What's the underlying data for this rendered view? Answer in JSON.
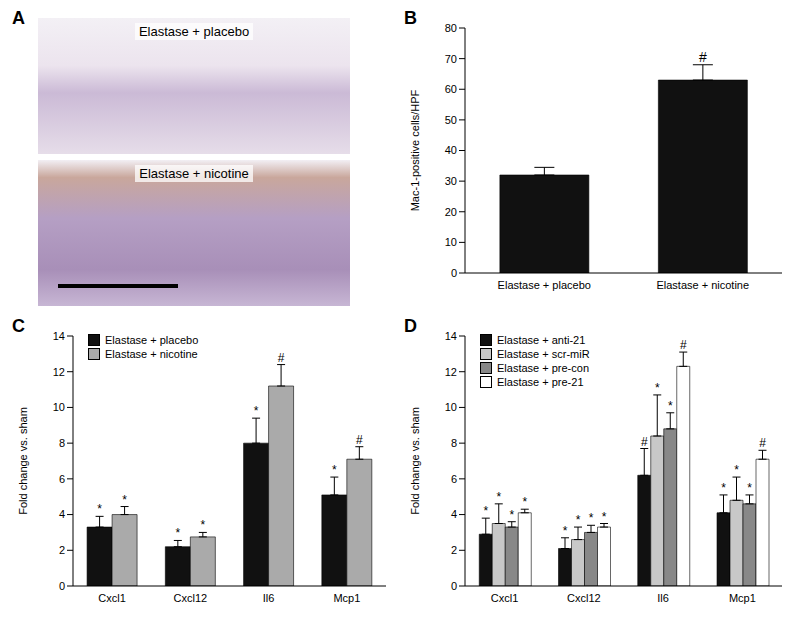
{
  "image_panel": {
    "label": "A",
    "images": [
      {
        "caption": "Elastase + placebo"
      },
      {
        "caption": "Elastase + nicotine"
      }
    ]
  },
  "chart_data": [
    {
      "type": "bar",
      "label": "B",
      "categories": [
        "Elastase + placebo",
        "Elastase + nicotine"
      ],
      "y_label": "Mac-1-positive cells/HPF",
      "ylim": [
        0,
        80
      ],
      "yticks": [
        0,
        10,
        20,
        30,
        40,
        50,
        60,
        70,
        80
      ],
      "series": [
        {
          "color": "#111111",
          "values": [
            32,
            63
          ],
          "errors": [
            2.5,
            5
          ],
          "significance": [
            null,
            "#"
          ]
        }
      ]
    },
    {
      "type": "bar",
      "label": "C",
      "categories": [
        "Cxcl1",
        "Cxcl12",
        "Il6",
        "Mcp1"
      ],
      "y_label": "Fold change vs. sham",
      "ylim": [
        0,
        14
      ],
      "yticks": [
        0,
        2,
        4,
        6,
        8,
        10,
        12,
        14
      ],
      "legend": "upper left",
      "series": [
        {
          "name": "Elastase + placebo",
          "color": "#111111",
          "values": [
            3.3,
            2.2,
            8.0,
            5.1
          ],
          "errors": [
            0.6,
            0.35,
            1.4,
            1.0
          ],
          "significance": [
            "*",
            "*",
            "*",
            "*"
          ]
        },
        {
          "name": "Elastase + nicotine",
          "color": "#aaaaaa",
          "values": [
            4.0,
            2.75,
            11.2,
            7.1
          ],
          "errors": [
            0.45,
            0.25,
            1.2,
            0.7
          ],
          "significance": [
            "*",
            "*",
            "#",
            "#"
          ]
        }
      ]
    },
    {
      "type": "bar",
      "label": "D",
      "categories": [
        "Cxcl1",
        "Cxcl12",
        "Il6",
        "Mcp1"
      ],
      "y_label": "Fold change vs. sham",
      "ylim": [
        0,
        14
      ],
      "yticks": [
        0,
        2,
        4,
        6,
        8,
        10,
        12,
        14
      ],
      "legend": "upper left",
      "series": [
        {
          "name": "Elastase + anti-21",
          "color": "#111111",
          "values": [
            2.9,
            2.1,
            6.2,
            4.1
          ],
          "errors": [
            0.9,
            0.6,
            1.5,
            1.0
          ],
          "significance": [
            "*",
            "*",
            "#",
            "*"
          ]
        },
        {
          "name": "Elastase + scr-miR",
          "color": "#c8c8c8",
          "values": [
            3.5,
            2.6,
            8.4,
            4.8
          ],
          "errors": [
            1.1,
            0.7,
            2.3,
            1.3
          ],
          "significance": [
            "*",
            "*",
            "*",
            "*"
          ]
        },
        {
          "name": "Elastase + pre-con",
          "color": "#888888",
          "values": [
            3.3,
            3.0,
            8.8,
            4.6
          ],
          "errors": [
            0.3,
            0.4,
            0.9,
            0.5
          ],
          "significance": [
            "*",
            "*",
            "*",
            "*"
          ]
        },
        {
          "name": "Elastase + pre-21",
          "color": "#ffffff",
          "values": [
            4.1,
            3.3,
            12.3,
            7.1
          ],
          "errors": [
            0.2,
            0.2,
            0.8,
            0.5
          ],
          "significance": [
            "*",
            "*",
            "#",
            "#"
          ]
        }
      ]
    }
  ]
}
